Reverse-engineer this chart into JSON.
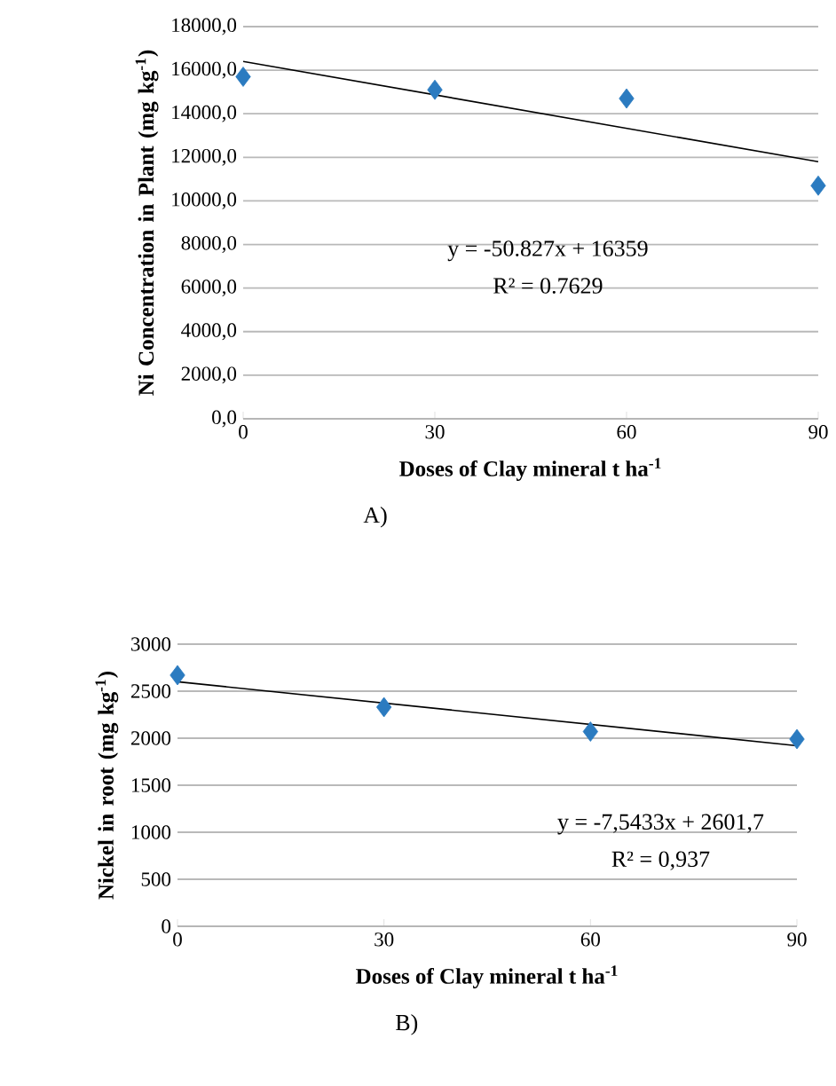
{
  "chart_data": [
    {
      "type": "scatter",
      "xlabel": "Doses of Clay mineral t ha$^{-1}$",
      "ylabel": "Ni  Concentration in Plant (mg kg$^{-1}$)",
      "xlim": [
        0,
        90
      ],
      "xticks": [
        0,
        30,
        60,
        90
      ],
      "ylim": [
        0,
        18000
      ],
      "yticks": [
        {
          "value": 0,
          "label": "0,0"
        },
        {
          "value": 2000,
          "label": "2000,0"
        },
        {
          "value": 4000,
          "label": "4000,0"
        },
        {
          "value": 6000,
          "label": "6000,0"
        },
        {
          "value": 8000,
          "label": "8000,0"
        },
        {
          "value": 10000,
          "label": "10000,0"
        },
        {
          "value": 12000,
          "label": "12000,0"
        },
        {
          "value": 14000,
          "label": "14000,0"
        },
        {
          "value": 16000,
          "label": "16000,0"
        },
        {
          "value": 18000,
          "label": "18000,0"
        }
      ],
      "grid": "y",
      "series": [
        {
          "color": "#2b7bc0",
          "marker": "diamond",
          "x": [
            0,
            30,
            60,
            90
          ],
          "values": [
            15700,
            15100,
            14700,
            10700
          ]
        },
        {
          "type": "line",
          "color": "#000000",
          "marker": "none",
          "x": [
            0,
            90
          ],
          "values": [
            16400,
            11800
          ]
        }
      ],
      "annotations": [
        "y = -50.827x + 16359",
        "R² = 0.7629",
        "A)"
      ]
    },
    {
      "type": "scatter",
      "xlabel": "Doses of Clay mineral t ha$^{-1}$",
      "ylabel": "Nickel in root (mg kg$^{-1}$)",
      "xlim": [
        0,
        90
      ],
      "xticks": [
        0,
        30,
        60,
        90
      ],
      "ylim": [
        0,
        3000
      ],
      "yticks": [
        0,
        500,
        1000,
        1500,
        2000,
        2500,
        3000
      ],
      "grid": "y",
      "series": [
        {
          "color": "#2b7bc0",
          "marker": "diamond",
          "x": [
            0,
            30,
            60,
            90
          ],
          "values": [
            2670,
            2330,
            2070,
            1990
          ]
        },
        {
          "type": "line",
          "color": "#000000",
          "marker": "none",
          "x": [
            0,
            90
          ],
          "values": [
            2600,
            1920
          ]
        }
      ],
      "annotations": [
        "y = -7,5433x + 2601,7",
        "R² = 0,937",
        "B)"
      ]
    }
  ]
}
